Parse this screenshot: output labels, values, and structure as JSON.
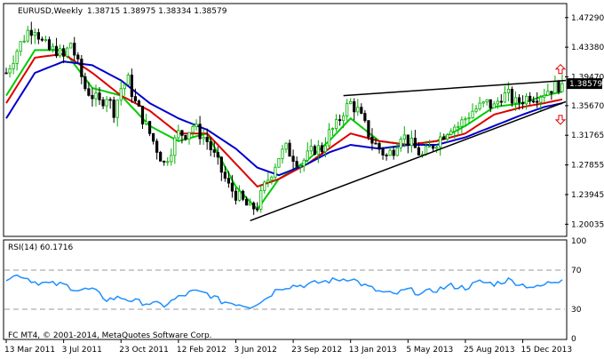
{
  "header": {
    "symbol": "EURUSD,Weekly",
    "ohlc": "1.38715 1.38975 1.38334 1.38579"
  },
  "footer": {
    "copyright": "FC MT4, © 2001-2014, MetaQuotes Software Corp."
  },
  "colors": {
    "bull": "#00b000",
    "bear": "#000000",
    "ma_fast": "#00cc00",
    "ma_mid": "#dd0000",
    "ma_slow": "#0000cc",
    "rsi": "#1e90ff",
    "trendline": "#000000",
    "arrow": "#dd0000",
    "price_box": "#000000",
    "grid_dash": "#999999"
  },
  "chart_data": [
    {
      "type": "candlestick",
      "title": "EURUSD,Weekly",
      "price_ylim": [
        1.1855,
        1.4902
      ],
      "y_ticks": [
        "1.47290",
        "1.43380",
        "1.39470",
        "1.35670",
        "1.31765",
        "1.27855",
        "1.23945",
        "1.20035"
      ],
      "current_price": "1.38579",
      "x_ticks": [
        "13 Mar 2011",
        "3 Jul 2011",
        "23 Oct 2011",
        "12 Feb 2012",
        "3 Jun 2012",
        "23 Sep 2012",
        "13 Jan 2013",
        "5 May 2013",
        "25 Aug 2013",
        "15 Dec 2013"
      ],
      "x_tick_index": [
        0,
        16,
        32,
        48,
        64,
        80,
        96,
        112,
        128,
        144
      ],
      "n_bars": 156,
      "anchors": [
        [
          0,
          1.4
        ],
        [
          3,
          1.43
        ],
        [
          6,
          1.455
        ],
        [
          8,
          1.46
        ],
        [
          10,
          1.44
        ],
        [
          12,
          1.43
        ],
        [
          14,
          1.43
        ],
        [
          16,
          1.42
        ],
        [
          18,
          1.44
        ],
        [
          20,
          1.41
        ],
        [
          22,
          1.38
        ],
        [
          24,
          1.37
        ],
        [
          26,
          1.36
        ],
        [
          28,
          1.37
        ],
        [
          30,
          1.35
        ],
        [
          32,
          1.38
        ],
        [
          34,
          1.39
        ],
        [
          36,
          1.36
        ],
        [
          38,
          1.34
        ],
        [
          40,
          1.32
        ],
        [
          42,
          1.3
        ],
        [
          44,
          1.28
        ],
        [
          46,
          1.3
        ],
        [
          48,
          1.32
        ],
        [
          50,
          1.32
        ],
        [
          52,
          1.33
        ],
        [
          54,
          1.32
        ],
        [
          56,
          1.31
        ],
        [
          58,
          1.29
        ],
        [
          60,
          1.27
        ],
        [
          62,
          1.25
        ],
        [
          64,
          1.24
        ],
        [
          66,
          1.23
        ],
        [
          68,
          1.22
        ],
        [
          70,
          1.225
        ],
        [
          72,
          1.25
        ],
        [
          74,
          1.27
        ],
        [
          76,
          1.29
        ],
        [
          78,
          1.3
        ],
        [
          80,
          1.29
        ],
        [
          82,
          1.28
        ],
        [
          84,
          1.29
        ],
        [
          86,
          1.3
        ],
        [
          88,
          1.3
        ],
        [
          90,
          1.32
        ],
        [
          92,
          1.33
        ],
        [
          94,
          1.35
        ],
        [
          96,
          1.36
        ],
        [
          98,
          1.35
        ],
        [
          100,
          1.33
        ],
        [
          102,
          1.31
        ],
        [
          104,
          1.3
        ],
        [
          106,
          1.29
        ],
        [
          108,
          1.3
        ],
        [
          110,
          1.32
        ],
        [
          112,
          1.31
        ],
        [
          114,
          1.3
        ],
        [
          116,
          1.29
        ],
        [
          118,
          1.3
        ],
        [
          120,
          1.31
        ],
        [
          122,
          1.32
        ],
        [
          124,
          1.33
        ],
        [
          126,
          1.33
        ],
        [
          128,
          1.34
        ],
        [
          130,
          1.35
        ],
        [
          132,
          1.355
        ],
        [
          134,
          1.36
        ],
        [
          136,
          1.355
        ],
        [
          138,
          1.37
        ],
        [
          140,
          1.37
        ],
        [
          142,
          1.36
        ],
        [
          144,
          1.365
        ],
        [
          146,
          1.37
        ],
        [
          148,
          1.37
        ],
        [
          150,
          1.375
        ],
        [
          152,
          1.38
        ],
        [
          155,
          1.3858
        ]
      ],
      "series": [
        {
          "name": "",
          "kind": "ma_fast",
          "values": [
            [
              0,
              1.37
            ],
            [
              8,
              1.43
            ],
            [
              16,
              1.43
            ],
            [
              24,
              1.38
            ],
            [
              32,
              1.37
            ],
            [
              40,
              1.33
            ],
            [
              48,
              1.31
            ],
            [
              56,
              1.32
            ],
            [
              64,
              1.25
            ],
            [
              70,
              1.22
            ],
            [
              76,
              1.26
            ],
            [
              84,
              1.285
            ],
            [
              90,
              1.31
            ],
            [
              96,
              1.34
            ],
            [
              104,
              1.31
            ],
            [
              112,
              1.305
            ],
            [
              120,
              1.31
            ],
            [
              128,
              1.33
            ],
            [
              136,
              1.355
            ],
            [
              144,
              1.36
            ],
            [
              150,
              1.37
            ],
            [
              155,
              1.375
            ]
          ]
        },
        {
          "name": "",
          "kind": "ma_mid",
          "values": [
            [
              0,
              1.36
            ],
            [
              8,
              1.42
            ],
            [
              16,
              1.425
            ],
            [
              24,
              1.4
            ],
            [
              32,
              1.37
            ],
            [
              40,
              1.35
            ],
            [
              48,
              1.32
            ],
            [
              56,
              1.32
            ],
            [
              64,
              1.28
            ],
            [
              70,
              1.25
            ],
            [
              76,
              1.26
            ],
            [
              84,
              1.28
            ],
            [
              90,
              1.3
            ],
            [
              96,
              1.32
            ],
            [
              104,
              1.31
            ],
            [
              112,
              1.305
            ],
            [
              120,
              1.31
            ],
            [
              128,
              1.32
            ],
            [
              136,
              1.345
            ],
            [
              144,
              1.355
            ],
            [
              150,
              1.36
            ],
            [
              155,
              1.365
            ]
          ]
        },
        {
          "name": "",
          "kind": "ma_slow",
          "values": [
            [
              0,
              1.34
            ],
            [
              8,
              1.4
            ],
            [
              16,
              1.415
            ],
            [
              24,
              1.41
            ],
            [
              32,
              1.39
            ],
            [
              40,
              1.36
            ],
            [
              48,
              1.34
            ],
            [
              56,
              1.325
            ],
            [
              64,
              1.3
            ],
            [
              70,
              1.275
            ],
            [
              76,
              1.265
            ],
            [
              84,
              1.28
            ],
            [
              90,
              1.295
            ],
            [
              96,
              1.305
            ],
            [
              104,
              1.3
            ],
            [
              112,
              1.305
            ],
            [
              120,
              1.305
            ],
            [
              128,
              1.315
            ],
            [
              136,
              1.33
            ],
            [
              144,
              1.345
            ],
            [
              150,
              1.355
            ],
            [
              155,
              1.36
            ]
          ]
        }
      ],
      "trendlines": [
        {
          "x1": 68,
          "y1": 1.205,
          "x2": 156,
          "y2": 1.362
        },
        {
          "x1": 94,
          "y1": 1.37,
          "x2": 156,
          "y2": 1.39
        }
      ],
      "arrows": [
        {
          "x": 155,
          "y": 1.405,
          "dir": "up"
        },
        {
          "x": 155,
          "y": 1.338,
          "dir": "down"
        }
      ]
    },
    {
      "type": "line",
      "title": "RSI(14) 60.1716",
      "ylim": [
        0,
        100
      ],
      "y_ticks": [
        "100",
        "70",
        "30",
        "0"
      ],
      "levels": [
        70,
        30
      ],
      "series": [
        {
          "name": "RSI(14)",
          "values": [
            [
              0,
              62
            ],
            [
              4,
              65
            ],
            [
              8,
              58
            ],
            [
              12,
              56
            ],
            [
              16,
              55
            ],
            [
              20,
              50
            ],
            [
              24,
              50
            ],
            [
              28,
              40
            ],
            [
              32,
              42
            ],
            [
              36,
              38
            ],
            [
              40,
              36
            ],
            [
              44,
              34
            ],
            [
              48,
              42
            ],
            [
              52,
              48
            ],
            [
              56,
              46
            ],
            [
              60,
              38
            ],
            [
              64,
              36
            ],
            [
              68,
              33
            ],
            [
              72,
              40
            ],
            [
              76,
              52
            ],
            [
              80,
              54
            ],
            [
              84,
              55
            ],
            [
              88,
              58
            ],
            [
              92,
              60
            ],
            [
              96,
              62
            ],
            [
              100,
              54
            ],
            [
              104,
              48
            ],
            [
              108,
              45
            ],
            [
              112,
              50
            ],
            [
              116,
              46
            ],
            [
              120,
              50
            ],
            [
              124,
              54
            ],
            [
              128,
              52
            ],
            [
              132,
              58
            ],
            [
              136,
              56
            ],
            [
              140,
              60
            ],
            [
              144,
              55
            ],
            [
              148,
              52
            ],
            [
              152,
              58
            ],
            [
              155,
              60.17
            ]
          ]
        }
      ]
    }
  ]
}
